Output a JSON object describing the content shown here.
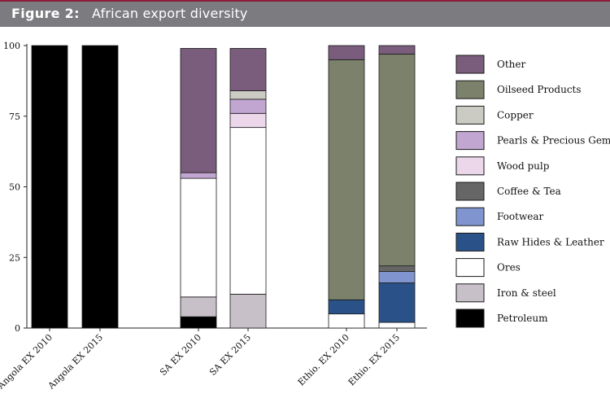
{
  "header": {
    "figure_label": "Figure 2:",
    "title": "African export diversity"
  },
  "chart_data": {
    "type": "bar",
    "stacked": true,
    "title": "African export diversity",
    "xlabel": "",
    "ylabel": "",
    "ylim": [
      0,
      100
    ],
    "yticks": [
      0,
      25,
      50,
      75,
      100
    ],
    "grid": false,
    "legend_position": "right",
    "categories": [
      "Angola EX 2010",
      "Angola EX 2015",
      "SA EX 2010",
      "SA EX 2015",
      "Ethio. EX 2010",
      "Ethio. EX 2015"
    ],
    "series": [
      {
        "name": "Petroleum",
        "color": "#000000",
        "values": [
          100,
          100,
          4,
          0,
          0,
          0
        ]
      },
      {
        "name": "Iron & steel",
        "color": "#c8c0c8",
        "values": [
          0,
          0,
          7,
          12,
          0,
          0
        ]
      },
      {
        "name": "Ores",
        "color": "#ffffff",
        "values": [
          0,
          0,
          42,
          59,
          5,
          2
        ]
      },
      {
        "name": "Raw Hides & Leather",
        "color": "#2b5288",
        "values": [
          0,
          0,
          0,
          0,
          5,
          14
        ]
      },
      {
        "name": "Footwear",
        "color": "#8095cf",
        "values": [
          0,
          0,
          0,
          0,
          0,
          4
        ]
      },
      {
        "name": "Coffee & Tea",
        "color": "#666666",
        "values": [
          0,
          0,
          0,
          0,
          0,
          2
        ]
      },
      {
        "name": "Wood pulp",
        "color": "#ebd6ea",
        "values": [
          0,
          0,
          0,
          5,
          0,
          0
        ]
      },
      {
        "name": "Pearls & Precious Gems",
        "color": "#c2a6d2",
        "values": [
          0,
          0,
          2,
          5,
          0,
          0
        ]
      },
      {
        "name": "Copper",
        "color": "#cbcbc3",
        "values": [
          0,
          0,
          0,
          3,
          0,
          0
        ]
      },
      {
        "name": "Oilseed Products",
        "color": "#7b816b",
        "values": [
          0,
          0,
          0,
          0,
          85,
          75
        ]
      },
      {
        "name": "Other",
        "color": "#7a5c7c",
        "values": [
          0,
          0,
          44,
          15,
          5,
          3
        ]
      }
    ],
    "legend_order": [
      "Other",
      "Oilseed Products",
      "Copper",
      "Pearls & Precious Gems",
      "Wood pulp",
      "Coffee & Tea",
      "Footwear",
      "Raw Hides & Leather",
      "Ores",
      "Iron & steel",
      "Petroleum"
    ]
  }
}
